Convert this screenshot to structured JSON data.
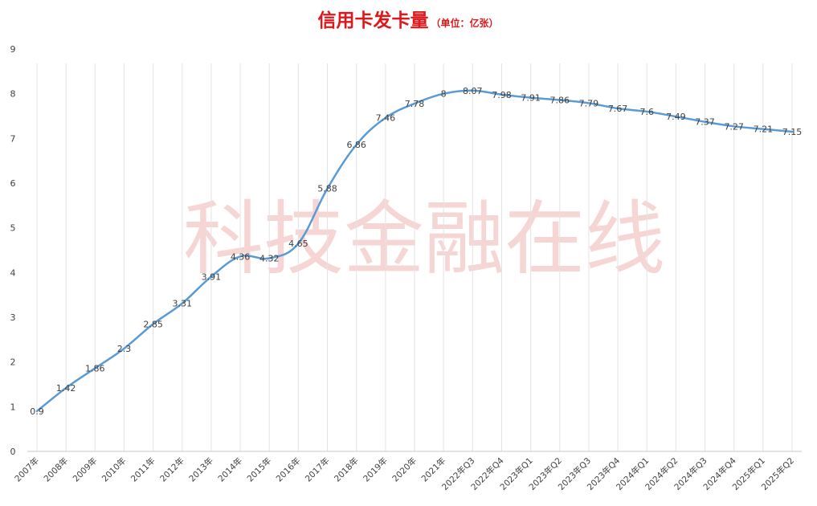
{
  "chart_data": {
    "type": "line",
    "title": "信用卡发卡量",
    "subtitle": "（单位：亿张）",
    "watermark": "科技金融在线",
    "xlabel": "",
    "ylabel": "",
    "ylim": [
      0,
      9
    ],
    "yticks": [
      0,
      1,
      2,
      3,
      4,
      5,
      6,
      7,
      8,
      9
    ],
    "grid": "vertical",
    "legend": "none",
    "line_color": "#5b9bd5",
    "title_color": "#e0161b",
    "categories": [
      "2007年",
      "2008年",
      "2009年",
      "2010年",
      "2011年",
      "2012年",
      "2013年",
      "2014年",
      "2015年",
      "2016年",
      "2017年",
      "2018年",
      "2019年",
      "2020年",
      "2021年",
      "2022年Q3",
      "2022年Q4",
      "2023年Q1",
      "2023年Q2",
      "2023年Q3",
      "2023年Q4",
      "2024年Q1",
      "2024年Q2",
      "2024年Q3",
      "2024年Q4",
      "2025年Q1",
      "2025年Q2"
    ],
    "series": [
      {
        "values": [
          0.9,
          1.42,
          1.86,
          2.3,
          2.85,
          3.31,
          3.91,
          4.36,
          4.32,
          4.65,
          5.88,
          6.86,
          7.46,
          7.78,
          8,
          8.07,
          7.98,
          7.91,
          7.86,
          7.79,
          7.67,
          7.6,
          7.49,
          7.37,
          7.27,
          7.21,
          7.15
        ]
      }
    ]
  }
}
